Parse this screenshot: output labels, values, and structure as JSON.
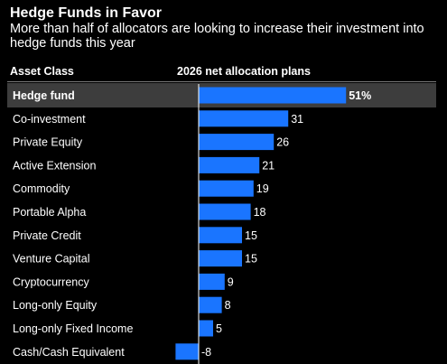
{
  "title": "Hedge Funds in Favor",
  "subtitle": "More than half of allocators are looking to increase their investment into hedge funds this year",
  "columns": {
    "left": "Asset Class",
    "right": "2026 net allocation plans"
  },
  "colors": {
    "bar": "#1a75ff",
    "background": "#000000",
    "highlight": "#3d3d3d",
    "text": "#ffffff"
  },
  "chart_data": {
    "type": "bar",
    "orientation": "horizontal",
    "categories": [
      "Hedge fund",
      "Co-investment",
      "Private Equity",
      "Active Extension",
      "Commodity",
      "Portable Alpha",
      "Private Credit",
      "Venture Capital",
      "Cryptocurrency",
      "Long-only Equity",
      "Long-only Fixed Income",
      "Cash/Cash Equivalent"
    ],
    "values": [
      51,
      31,
      26,
      21,
      19,
      18,
      15,
      15,
      9,
      8,
      5,
      -8
    ],
    "value_labels": [
      "51%",
      "31",
      "26",
      "21",
      "19",
      "18",
      "15",
      "15",
      "9",
      "8",
      "5",
      "-8"
    ],
    "highlighted_category": "Hedge fund",
    "xlim": [
      -8,
      51
    ]
  }
}
